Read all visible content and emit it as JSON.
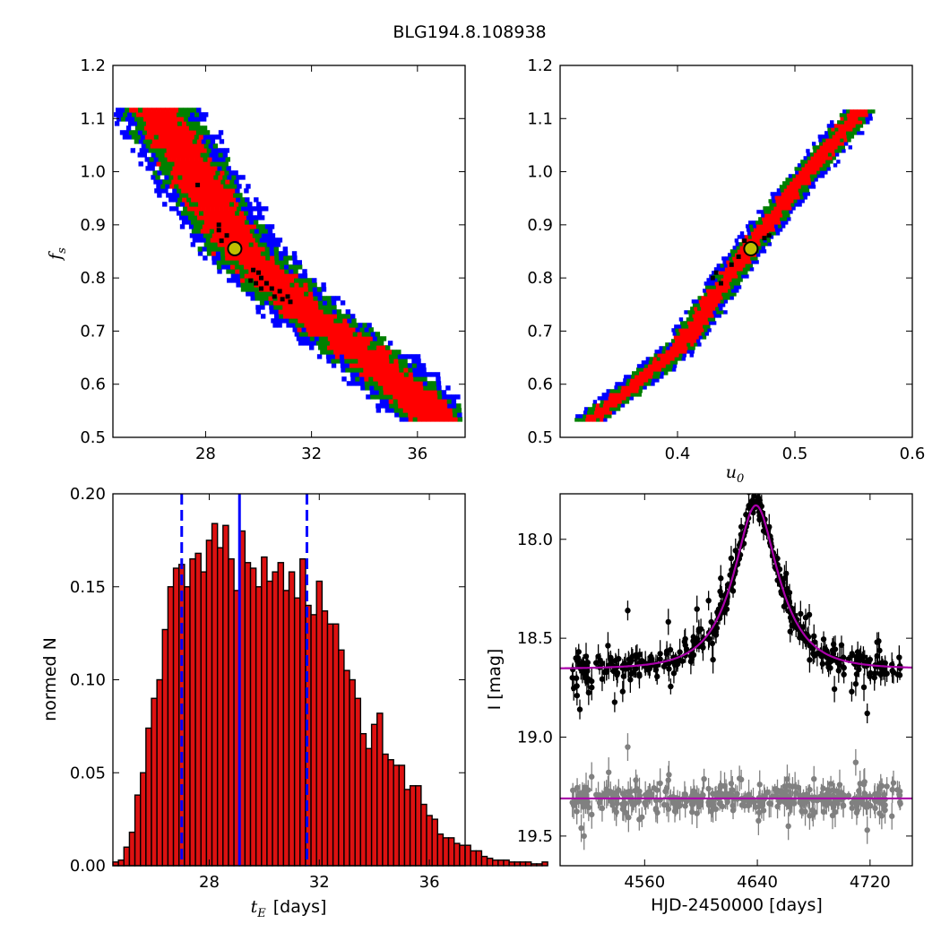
{
  "figure": {
    "title": "BLG194.8.108938"
  },
  "colors": {
    "blue": "#0000ff",
    "green": "#008000",
    "red": "#ff0000",
    "black": "#000000",
    "gray": "#808080",
    "magenta": "#aa00aa",
    "marker": "#bfbf00",
    "bar_fill": "#dd1111"
  },
  "chart_data": [
    {
      "id": "fs_vs_tE",
      "type": "heatmap",
      "description_levels": [
        "blue",
        "green",
        "red",
        "black"
      ],
      "xlim": [
        24.5,
        37.8
      ],
      "ylim": [
        0.5,
        1.2
      ],
      "x_ticks": [
        28,
        32,
        36
      ],
      "x_tick_labels": [
        "28",
        "32",
        "36"
      ],
      "y_ticks": [
        0.5,
        0.6,
        0.7,
        0.8,
        0.9,
        1.0,
        1.1,
        1.2
      ],
      "y_tick_labels": [
        "0.5",
        "0.6",
        "0.7",
        "0.8",
        "0.9",
        "1.0",
        "1.1",
        "1.2"
      ],
      "xlabel": "",
      "ylabel": "f_s",
      "ylabel_main": "f",
      "ylabel_sub": "s",
      "band_centerline": [
        [
          26.0,
          1.12
        ],
        [
          29.2,
          0.85
        ],
        [
          32.0,
          0.72
        ],
        [
          34.0,
          0.65
        ],
        [
          36.2,
          0.55
        ]
      ],
      "band_halfwidth_red_days": 0.85,
      "band_halfwidth_green_days": 1.25,
      "band_halfwidth_blue_days": 1.6,
      "best_fit": {
        "x": 29.1,
        "y": 0.855
      },
      "black_points": [
        [
          27.7,
          0.975
        ],
        [
          28.5,
          0.9
        ],
        [
          28.5,
          0.89
        ],
        [
          28.8,
          0.88
        ],
        [
          28.6,
          0.87
        ],
        [
          29.8,
          0.815
        ],
        [
          30.0,
          0.81
        ],
        [
          30.1,
          0.8
        ],
        [
          29.7,
          0.795
        ],
        [
          29.9,
          0.79
        ],
        [
          30.3,
          0.79
        ],
        [
          30.5,
          0.78
        ],
        [
          30.1,
          0.78
        ],
        [
          30.8,
          0.775
        ],
        [
          30.6,
          0.765
        ],
        [
          31.1,
          0.765
        ],
        [
          30.9,
          0.76
        ],
        [
          31.2,
          0.755
        ]
      ]
    },
    {
      "id": "fs_vs_u0",
      "type": "heatmap",
      "description_levels": [
        "blue",
        "green",
        "red",
        "black"
      ],
      "xlim": [
        0.3,
        0.6
      ],
      "ylim": [
        0.5,
        1.2
      ],
      "x_ticks": [
        0.4,
        0.5,
        0.6
      ],
      "x_tick_labels": [
        "0.4",
        "0.5",
        "0.6"
      ],
      "y_ticks": [
        0.5,
        0.6,
        0.7,
        0.8,
        0.9,
        1.0,
        1.1,
        1.2
      ],
      "y_tick_labels": [
        "0.5",
        "0.6",
        "0.7",
        "0.8",
        "0.9",
        "1.0",
        "1.1",
        "1.2"
      ],
      "xlabel": "u_0",
      "xlabel_main": "u",
      "xlabel_sub": "0",
      "ylabel": "",
      "band_centerline": [
        [
          0.325,
          0.53
        ],
        [
          0.4,
          0.665
        ],
        [
          0.46,
          0.855
        ],
        [
          0.5,
          0.97
        ],
        [
          0.555,
          1.115
        ]
      ],
      "band_halfwidth_red_u": 0.008,
      "band_halfwidth_green_u": 0.012,
      "band_halfwidth_blue_u": 0.015,
      "best_fit": {
        "x": 0.4625,
        "y": 0.855
      },
      "black_points": [
        [
          0.433,
          0.81
        ],
        [
          0.43,
          0.8
        ],
        [
          0.437,
          0.79
        ],
        [
          0.446,
          0.825
        ],
        [
          0.452,
          0.84
        ],
        [
          0.457,
          0.87
        ],
        [
          0.474,
          0.875
        ],
        [
          0.478,
          0.88
        ]
      ]
    },
    {
      "id": "tE_histogram",
      "type": "bar",
      "xlim": [
        24.5,
        37.3
      ],
      "ylim": [
        0.0,
        0.2
      ],
      "bin_start": 24.5,
      "bin_width": 0.2,
      "values": [
        0.002,
        0.003,
        0.01,
        0.018,
        0.038,
        0.05,
        0.074,
        0.09,
        0.1,
        0.127,
        0.15,
        0.16,
        0.162,
        0.15,
        0.165,
        0.168,
        0.158,
        0.175,
        0.184,
        0.171,
        0.183,
        0.165,
        0.148,
        0.18,
        0.163,
        0.16,
        0.15,
        0.166,
        0.153,
        0.158,
        0.163,
        0.148,
        0.158,
        0.144,
        0.165,
        0.14,
        0.135,
        0.153,
        0.137,
        0.13,
        0.13,
        0.116,
        0.105,
        0.1,
        0.09,
        0.071,
        0.063,
        0.076,
        0.082,
        0.06,
        0.057,
        0.054,
        0.054,
        0.041,
        0.043,
        0.043,
        0.033,
        0.027,
        0.025,
        0.017,
        0.015,
        0.015,
        0.012,
        0.011,
        0.011,
        0.008,
        0.008,
        0.005,
        0.004,
        0.003,
        0.003,
        0.003,
        0.002,
        0.002,
        0.002,
        0.002,
        0.001,
        0.001,
        0.002
      ],
      "median": 29.1,
      "lower_bound": 27.0,
      "upper_bound": 31.55,
      "x_ticks": [
        28,
        32,
        36
      ],
      "x_tick_labels": [
        "28",
        "32",
        "36"
      ],
      "y_ticks": [
        0.0,
        0.05,
        0.1,
        0.15,
        0.2
      ],
      "y_tick_labels": [
        "0.00",
        "0.05",
        "0.10",
        "0.15",
        "0.20"
      ],
      "xlabel": "t_E [days]",
      "xlabel_main": "t",
      "xlabel_sub": "E",
      "xlabel_unit": "[days]",
      "ylabel": "normed N"
    },
    {
      "id": "light_curve",
      "type": "scatter",
      "xlim": [
        4500,
        4750
      ],
      "ylim": [
        19.65,
        17.77
      ],
      "x_ticks": [
        4560,
        4640,
        4720
      ],
      "x_tick_labels": [
        "4560",
        "4640",
        "4720"
      ],
      "y_ticks": [
        18.0,
        18.5,
        19.0,
        19.5
      ],
      "y_tick_labels": [
        "18.0",
        "18.5",
        "19.0",
        "19.5"
      ],
      "xlabel": "HJD-2450000 [days]",
      "ylabel": "I [mag]",
      "model": {
        "t0": 4639.0,
        "tE": 29.0,
        "u0": 0.462,
        "fs": 0.855,
        "baseline": 18.655
      },
      "residual_baseline": 19.31,
      "observation_range": [
        4508,
        4742
      ],
      "n_points": 360,
      "outliers": [
        {
          "x": 4519,
          "y": 18.64
        },
        {
          "x": 4548,
          "y": 18.36
        },
        {
          "x": 4512,
          "y": 18.79
        },
        {
          "x": 4514,
          "y": 18.86
        },
        {
          "x": 4519,
          "y": 18.72
        },
        {
          "x": 4707,
          "y": 18.77
        },
        {
          "x": 4718,
          "y": 18.88
        },
        {
          "x": 4725,
          "y": 18.52
        }
      ],
      "residual_outliers": [
        {
          "x": 4548,
          "y": 19.05
        },
        {
          "x": 4515,
          "y": 19.46
        },
        {
          "x": 4517,
          "y": 19.5
        },
        {
          "x": 4718,
          "y": 19.47
        },
        {
          "x": 4662,
          "y": 19.45
        }
      ]
    }
  ]
}
